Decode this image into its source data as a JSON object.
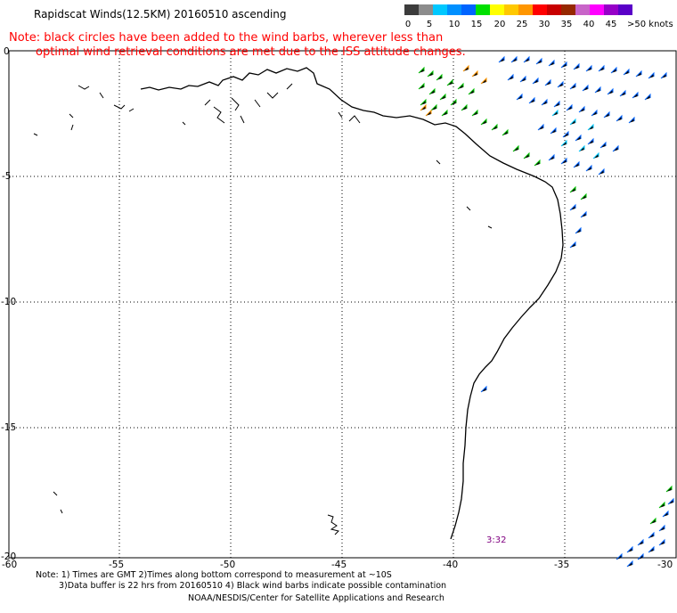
{
  "header": {
    "title": "Rapidscat Winds(12.5KM) 20160510 ascending",
    "note_line1": "Note: black circles have been added to the wind barbs, wherever less than",
    "note_line2": "optimal wind retrieval conditions are met due to the ISS attitude changes."
  },
  "legend": {
    "labels": [
      "0",
      "5",
      "10",
      "15",
      "20",
      "25",
      "30",
      "35",
      "40",
      "45",
      ">50 knots"
    ],
    "colors": [
      "#3c3c3c",
      "#8c8c8c",
      "#00c8ff",
      "#0064ff",
      "#00e000",
      "#ffff00",
      "#ff9600",
      "#ff0000",
      "#962800",
      "#c864c8",
      "#5a00c8"
    ]
  },
  "axes": {
    "lat_ticks": [
      "0",
      "-5",
      "-10",
      "-15",
      "-20"
    ],
    "lon_ticks": [
      "-60",
      "-55",
      "-50",
      "-45",
      "-40",
      "-35",
      "-30"
    ],
    "lat_range": [
      -20,
      0
    ],
    "lon_range": [
      -60,
      -30
    ],
    "grid": "dotted"
  },
  "overlay": {
    "pass_time": "3:32"
  },
  "footer": {
    "line1": "Note: 1) Times are GMT 2)Times along bottom correspond to measurement at ~10S",
    "line2": "3)Data buffer is 22 hrs from 20160510 4) Black wind barbs indicate possible contamination",
    "line3": "NOAA/NESDIS/Center for Satellite Applications and Research"
  }
}
